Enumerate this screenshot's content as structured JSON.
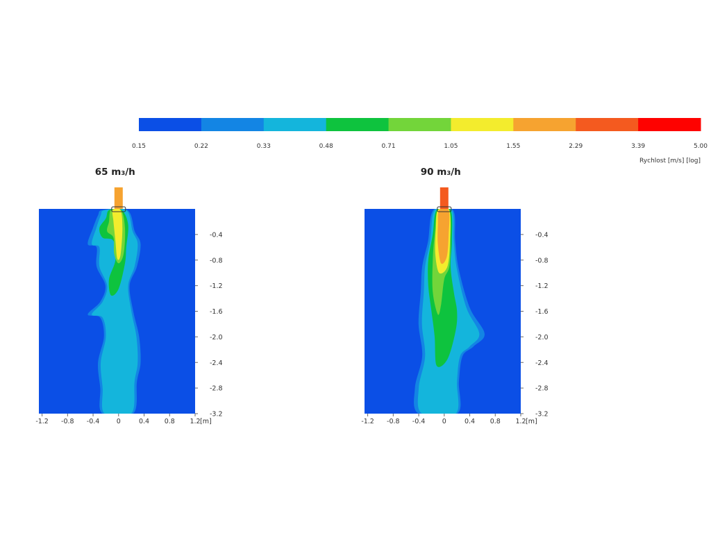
{
  "colorbar": {
    "colors": [
      "#0b4fe6",
      "#1385e4",
      "#14b5dc",
      "#0ec33e",
      "#73d53a",
      "#f3ec2d",
      "#f6a330",
      "#f45a1f",
      "#fe0200"
    ],
    "tick_labels": [
      "0.15",
      "0.22",
      "0.33",
      "0.48",
      "0.71",
      "1.05",
      "1.55",
      "2.29",
      "3.39",
      "5.00"
    ],
    "label": "Rychlost [m/s] [log]"
  },
  "chart_data": [
    {
      "type": "heatmap",
      "title": "65 m₃/h",
      "xlabel": "",
      "ylabel": "",
      "x_unit": "[m]",
      "xlim": [
        -1.25,
        1.2
      ],
      "ylim": [
        -3.2,
        0.0
      ],
      "x_ticks": [
        "-1.2",
        "-0.8",
        "-0.4",
        "0",
        "0.4",
        "0.8",
        "1.2"
      ],
      "y_ticks": [
        "-0.4",
        "-0.8",
        "-1.2",
        "-1.6",
        "-2.0",
        "-2.4",
        "-2.8",
        "-3.2"
      ],
      "inlet_color": "#f6a330",
      "plume_layers": [
        {
          "level": 2,
          "color": "#14b5dc",
          "pts": [
            [
              -0.22,
              -0.02
            ],
            [
              0.12,
              -0.02
            ],
            [
              0.22,
              -0.35
            ],
            [
              0.3,
              -0.55
            ],
            [
              0.25,
              -0.9
            ],
            [
              0.15,
              -1.2
            ],
            [
              0.2,
              -1.6
            ],
            [
              0.28,
              -2.0
            ],
            [
              0.3,
              -2.4
            ],
            [
              0.25,
              -2.7
            ],
            [
              0.2,
              -3.2
            ],
            [
              -0.22,
              -3.2
            ],
            [
              -0.25,
              -2.8
            ],
            [
              -0.28,
              -2.4
            ],
            [
              -0.2,
              -2.0
            ],
            [
              -0.25,
              -1.7
            ],
            [
              -0.42,
              -1.65
            ],
            [
              -0.25,
              -1.45
            ],
            [
              -0.18,
              -1.2
            ],
            [
              -0.3,
              -0.9
            ],
            [
              -0.3,
              -0.6
            ],
            [
              -0.42,
              -0.55
            ],
            [
              -0.35,
              -0.3
            ],
            [
              -0.28,
              -0.1
            ]
          ]
        },
        {
          "level": 3,
          "color": "#0ec33e",
          "pts": [
            [
              -0.15,
              -0.02
            ],
            [
              0.05,
              -0.02
            ],
            [
              0.15,
              -0.25
            ],
            [
              0.12,
              -0.6
            ],
            [
              0.1,
              -0.85
            ],
            [
              0.0,
              -1.25
            ],
            [
              -0.12,
              -1.35
            ],
            [
              -0.15,
              -1.1
            ],
            [
              -0.05,
              -0.8
            ],
            [
              -0.08,
              -0.5
            ],
            [
              -0.25,
              -0.45
            ],
            [
              -0.3,
              -0.3
            ],
            [
              -0.2,
              -0.15
            ]
          ]
        },
        {
          "level": 4,
          "color": "#73d53a",
          "pts": [
            [
              -0.12,
              -0.02
            ],
            [
              0.04,
              -0.02
            ],
            [
              0.1,
              -0.3
            ],
            [
              0.08,
              -0.7
            ],
            [
              0.0,
              -0.85
            ],
            [
              -0.07,
              -0.7
            ],
            [
              -0.08,
              -0.45
            ],
            [
              -0.18,
              -0.35
            ],
            [
              -0.15,
              -0.2
            ]
          ]
        },
        {
          "level": 5,
          "color": "#f3ec2d",
          "pts": [
            [
              -0.09,
              -0.02
            ],
            [
              0.03,
              -0.02
            ],
            [
              0.06,
              -0.3
            ],
            [
              0.03,
              -0.72
            ],
            [
              -0.02,
              -0.78
            ],
            [
              -0.05,
              -0.5
            ],
            [
              -0.08,
              -0.2
            ]
          ]
        }
      ]
    },
    {
      "type": "heatmap",
      "title": "90 m₃/h",
      "xlabel": "",
      "ylabel": "",
      "x_unit": "[m]",
      "xlim": [
        -1.25,
        1.2
      ],
      "ylim": [
        -3.2,
        0.0
      ],
      "x_ticks": [
        "-1.2",
        "-0.8",
        "-0.4",
        "0",
        "0.4",
        "0.8",
        "1.2"
      ],
      "y_ticks": [
        "-0.4",
        "-0.8",
        "-1.2",
        "-1.6",
        "-2.0",
        "-2.4",
        "-2.8",
        "-3.2"
      ],
      "inlet_color": "#f45a1f",
      "plume_layers": [
        {
          "level": 2,
          "color": "#14b5dc",
          "pts": [
            [
              -0.15,
              -0.02
            ],
            [
              0.12,
              -0.02
            ],
            [
              0.15,
              -0.5
            ],
            [
              0.2,
              -0.95
            ],
            [
              0.35,
              -1.55
            ],
            [
              0.55,
              -1.95
            ],
            [
              0.4,
              -2.15
            ],
            [
              0.25,
              -2.3
            ],
            [
              0.2,
              -2.7
            ],
            [
              0.18,
              -3.2
            ],
            [
              -0.35,
              -3.2
            ],
            [
              -0.4,
              -2.8
            ],
            [
              -0.3,
              -2.3
            ],
            [
              -0.35,
              -1.8
            ],
            [
              -0.32,
              -1.3
            ],
            [
              -0.3,
              -0.9
            ],
            [
              -0.22,
              -0.5
            ]
          ]
        },
        {
          "level": 3,
          "color": "#0ec33e",
          "pts": [
            [
              -0.12,
              -0.02
            ],
            [
              0.1,
              -0.02
            ],
            [
              0.12,
              -0.5
            ],
            [
              0.1,
              -0.9
            ],
            [
              0.15,
              -1.3
            ],
            [
              0.2,
              -1.6
            ],
            [
              0.18,
              -1.9
            ],
            [
              0.05,
              -2.35
            ],
            [
              -0.12,
              -2.45
            ],
            [
              -0.15,
              -2.0
            ],
            [
              -0.2,
              -1.6
            ],
            [
              -0.25,
              -1.2
            ],
            [
              -0.25,
              -0.8
            ],
            [
              -0.18,
              -0.4
            ]
          ]
        },
        {
          "level": 4,
          "color": "#73d53a",
          "pts": [
            [
              -0.1,
              -0.02
            ],
            [
              0.08,
              -0.02
            ],
            [
              0.1,
              -0.5
            ],
            [
              0.08,
              -0.9
            ],
            [
              0.0,
              -1.1
            ],
            [
              -0.05,
              -1.5
            ],
            [
              -0.1,
              -1.65
            ],
            [
              -0.18,
              -1.3
            ],
            [
              -0.18,
              -0.8
            ],
            [
              -0.15,
              -0.4
            ]
          ]
        },
        {
          "level": 5,
          "color": "#f3ec2d",
          "pts": [
            [
              -0.1,
              -0.02
            ],
            [
              0.08,
              -0.02
            ],
            [
              0.09,
              -0.5
            ],
            [
              0.05,
              -0.9
            ],
            [
              -0.08,
              -1.0
            ],
            [
              -0.14,
              -0.7
            ],
            [
              -0.13,
              -0.3
            ]
          ]
        },
        {
          "level": 6,
          "color": "#f6a330",
          "pts": [
            [
              -0.08,
              -0.02
            ],
            [
              0.07,
              -0.02
            ],
            [
              0.07,
              -0.4
            ],
            [
              0.04,
              -0.75
            ],
            [
              -0.05,
              -0.85
            ],
            [
              -0.1,
              -0.55
            ],
            [
              -0.1,
              -0.25
            ]
          ]
        }
      ]
    }
  ]
}
